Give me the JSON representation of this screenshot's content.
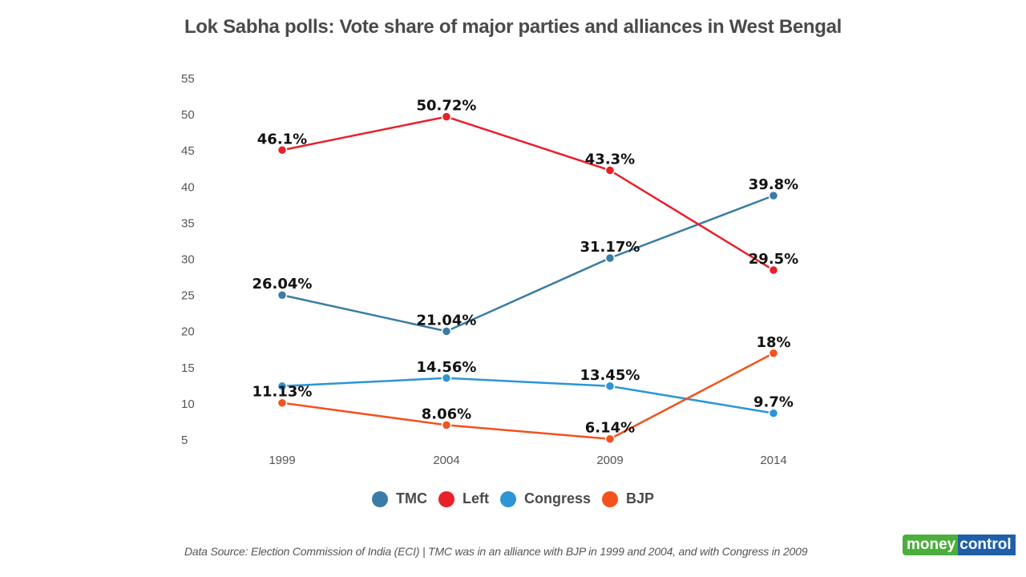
{
  "chart_data": {
    "type": "line",
    "title": "Lok Sabha polls: Vote share of major parties and alliances in West Bengal",
    "xlabel": "",
    "ylabel": "",
    "categories": [
      "1999",
      "2004",
      "2009",
      "2014"
    ],
    "ylim": [
      5,
      55
    ],
    "yticks": [
      55,
      50,
      45,
      40,
      35,
      30,
      25,
      20,
      15,
      10,
      5
    ],
    "grid": false,
    "legend_position": "bottom-center",
    "series": [
      {
        "name": "TMC",
        "color": "#3a7ca5",
        "values": [
          26.04,
          21.04,
          31.17,
          39.8
        ],
        "labels": [
          "26.04%",
          "21.04%",
          "31.17%",
          "39.8%"
        ]
      },
      {
        "name": "Left",
        "color": "#e8202a",
        "values": [
          46.1,
          50.72,
          43.3,
          29.5
        ],
        "labels": [
          "46.1%",
          "50.72%",
          "43.3%",
          "29.5%"
        ]
      },
      {
        "name": "Congress",
        "color": "#2b95d6",
        "values": [
          13.45,
          14.56,
          13.45,
          9.7
        ],
        "labels": [
          "",
          "14.56%",
          "13.45%",
          "9.7%"
        ]
      },
      {
        "name": "BJP",
        "color": "#f4511e",
        "values": [
          11.13,
          8.06,
          6.14,
          18
        ],
        "labels": [
          "11.13%",
          "8.06%",
          "6.14%",
          "18%"
        ]
      }
    ]
  },
  "footer": {
    "source": "Data Source: Election Commission of India (ECI) | TMC was in an alliance with BJP in 1999 and 2004, and with Congress in 2009"
  },
  "logo": {
    "part1": "money",
    "part2": "control"
  }
}
